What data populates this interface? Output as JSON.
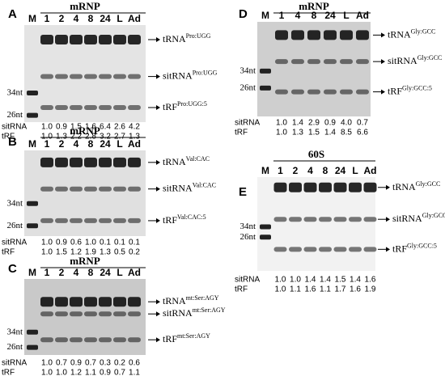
{
  "panels": [
    {
      "letter": "A",
      "title": "mRNP",
      "lanes": [
        "M",
        "1",
        "2",
        "4",
        "8",
        "24",
        "L",
        "Ad"
      ],
      "markers": [
        "34nt",
        "26nt"
      ],
      "labels": [
        {
          "base": "tRNA",
          "sup": "Pro:UGG"
        },
        {
          "base": "sitRNA",
          "sup": "Pro:UGG"
        },
        {
          "base": "tRF",
          "sup": "Pro:UGG:5"
        }
      ],
      "rows": [
        {
          "label": "sitRNA",
          "values": [
            "1.0",
            "0.9",
            "1.5",
            "1.6",
            "6.4",
            "2.6",
            "4.2"
          ]
        },
        {
          "label": "tRF",
          "values": [
            "1.0",
            "1.3",
            "2.2",
            "2.8",
            "3.2",
            "2.7",
            "1.3"
          ]
        }
      ]
    },
    {
      "letter": "B",
      "title": "mRNP",
      "lanes": [
        "M",
        "1",
        "2",
        "4",
        "8",
        "24",
        "L",
        "Ad"
      ],
      "markers": [
        "34nt",
        "26nt"
      ],
      "labels": [
        {
          "base": "tRNA",
          "sup": "Val:CAC"
        },
        {
          "base": "sitRNA",
          "sup": "Val:CAC"
        },
        {
          "base": "tRF",
          "sup": "Val:CAC:5"
        }
      ],
      "rows": [
        {
          "label": "sitRNA",
          "values": [
            "1.0",
            "0.9",
            "0.6",
            "1.0",
            "0.1",
            "0.1",
            "0.1"
          ]
        },
        {
          "label": "tRF",
          "values": [
            "1.0",
            "1.5",
            "1.2",
            "1.9",
            "1.3",
            "0.5",
            "0.2"
          ]
        }
      ]
    },
    {
      "letter": "C",
      "title": "mRNP",
      "lanes": [
        "M",
        "1",
        "2",
        "4",
        "8",
        "24",
        "L",
        "Ad"
      ],
      "markers": [
        "34nt",
        "26nt"
      ],
      "labels": [
        {
          "base": "tRNA",
          "sup": "mt:Ser:AGY"
        },
        {
          "base": "sitRNA",
          "sup": "mt:Ser:AGY"
        },
        {
          "base": "tRF",
          "sup": "mt:Ser:AGY"
        }
      ],
      "rows": [
        {
          "label": "sitRNA",
          "values": [
            "1.0",
            "0.7",
            "0.9",
            "0.7",
            "0.3",
            "0.2",
            "0.6"
          ]
        },
        {
          "label": "tRF",
          "values": [
            "1.0",
            "1.0",
            "1.2",
            "1.1",
            "0.9",
            "0.7",
            "1.1"
          ]
        }
      ]
    },
    {
      "letter": "D",
      "title": "mRNP",
      "lanes": [
        "M",
        "1",
        "4",
        "8",
        "24",
        "L",
        "Ad"
      ],
      "markers": [
        "34nt",
        "26nt"
      ],
      "labels": [
        {
          "base": "tRNA",
          "sup": "Gly:GCC"
        },
        {
          "base": "sitRNA",
          "sup": "Gly:GCC"
        },
        {
          "base": "tRF",
          "sup": "Gly:GCC:5"
        }
      ],
      "rows": [
        {
          "label": "sitRNA",
          "values": [
            "1.0",
            "1.4",
            "2.9",
            "0.9",
            "4.0",
            "0.7"
          ]
        },
        {
          "label": "tRF",
          "values": [
            "1.0",
            "1.3",
            "1.5",
            "1.4",
            "8.5",
            "6.6"
          ]
        }
      ]
    },
    {
      "letter": "E",
      "title": "60S",
      "lanes": [
        "M",
        "1",
        "2",
        "4",
        "8",
        "24",
        "L",
        "Ad"
      ],
      "markers": [
        "34nt",
        "26nt"
      ],
      "labels": [
        {
          "base": "tRNA",
          "sup": "Gly:GCC"
        },
        {
          "base": "sitRNA",
          "sup": "Gly:GCC"
        },
        {
          "base": "tRF",
          "sup": "Gly:GCC:5"
        }
      ],
      "rows": [
        {
          "label": "sitRNA",
          "values": [
            "1.0",
            "1.0",
            "1.4",
            "1.4",
            "1.5",
            "1.4",
            "1.6"
          ]
        },
        {
          "label": "tRF",
          "values": [
            "1.0",
            "1.1",
            "1.6",
            "1.1",
            "1.7",
            "1.6",
            "1.9"
          ]
        }
      ]
    }
  ]
}
